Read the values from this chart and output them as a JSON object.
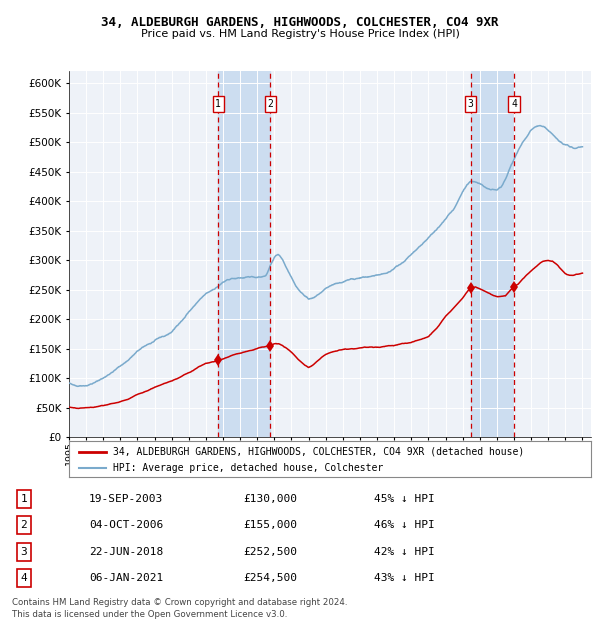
{
  "title1": "34, ALDEBURGH GARDENS, HIGHWOODS, COLCHESTER, CO4 9XR",
  "title2": "Price paid vs. HM Land Registry's House Price Index (HPI)",
  "legend_label_red": "34, ALDEBURGH GARDENS, HIGHWOODS, COLCHESTER, CO4 9XR (detached house)",
  "legend_label_blue": "HPI: Average price, detached house, Colchester",
  "footer1": "Contains HM Land Registry data © Crown copyright and database right 2024.",
  "footer2": "This data is licensed under the Open Government Licence v3.0.",
  "transactions": [
    {
      "num": 1,
      "date": "19-SEP-2003",
      "price": 130000,
      "pct": "45%",
      "dir": "↓"
    },
    {
      "num": 2,
      "date": "04-OCT-2006",
      "price": 155000,
      "pct": "46%",
      "dir": "↓"
    },
    {
      "num": 3,
      "date": "22-JUN-2018",
      "price": 252500,
      "pct": "42%",
      "dir": "↓"
    },
    {
      "num": 4,
      "date": "06-JAN-2021",
      "price": 254500,
      "pct": "43%",
      "dir": "↓"
    }
  ],
  "transaction_years": [
    2003.72,
    2006.76,
    2018.47,
    2021.01
  ],
  "ylim": [
    0,
    620000
  ],
  "xlim_start": 1995.0,
  "xlim_end": 2025.5,
  "plot_bg": "#eef2f8",
  "grid_color": "#ffffff",
  "red_color": "#cc0000",
  "blue_color": "#7aaacc",
  "shade_color": "#ccddf0",
  "hpi_years": [
    1995.0,
    1995.5,
    1996.0,
    1996.5,
    1997.0,
    1997.5,
    1998.0,
    1998.5,
    1999.0,
    1999.5,
    2000.0,
    2000.5,
    2001.0,
    2001.5,
    2002.0,
    2002.5,
    2003.0,
    2003.5,
    2004.0,
    2004.5,
    2005.0,
    2005.5,
    2006.0,
    2006.5,
    2007.0,
    2007.25,
    2007.5,
    2007.75,
    2008.0,
    2008.25,
    2008.5,
    2008.75,
    2009.0,
    2009.25,
    2009.5,
    2009.75,
    2010.0,
    2010.5,
    2011.0,
    2011.5,
    2012.0,
    2012.5,
    2013.0,
    2013.5,
    2014.0,
    2014.5,
    2015.0,
    2015.5,
    2016.0,
    2016.5,
    2017.0,
    2017.5,
    2018.0,
    2018.25,
    2018.5,
    2018.75,
    2019.0,
    2019.25,
    2019.5,
    2019.75,
    2020.0,
    2020.25,
    2020.5,
    2020.75,
    2021.0,
    2021.25,
    2021.5,
    2021.75,
    2022.0,
    2022.25,
    2022.5,
    2022.75,
    2023.0,
    2023.25,
    2023.5,
    2023.75,
    2024.0,
    2024.25,
    2024.5,
    2024.75,
    2025.0
  ],
  "hpi_vals": [
    90000,
    88000,
    88000,
    92000,
    100000,
    110000,
    120000,
    132000,
    145000,
    155000,
    163000,
    170000,
    178000,
    195000,
    212000,
    228000,
    242000,
    252000,
    262000,
    268000,
    270000,
    270000,
    272000,
    274000,
    305000,
    310000,
    300000,
    285000,
    272000,
    258000,
    248000,
    240000,
    234000,
    236000,
    240000,
    245000,
    252000,
    258000,
    264000,
    268000,
    270000,
    272000,
    275000,
    278000,
    285000,
    295000,
    310000,
    322000,
    338000,
    352000,
    368000,
    385000,
    415000,
    428000,
    435000,
    432000,
    428000,
    425000,
    422000,
    420000,
    418000,
    422000,
    435000,
    455000,
    470000,
    485000,
    500000,
    510000,
    520000,
    525000,
    528000,
    525000,
    518000,
    512000,
    505000,
    500000,
    495000,
    492000,
    490000,
    492000,
    490000
  ],
  "red_years": [
    1995.0,
    1995.5,
    1996.0,
    1996.5,
    1997.0,
    1997.5,
    1998.0,
    1998.5,
    1999.0,
    1999.5,
    2000.0,
    2000.5,
    2001.0,
    2001.5,
    2002.0,
    2002.5,
    2003.0,
    2003.5,
    2003.72,
    2004.0,
    2004.5,
    2005.0,
    2005.5,
    2006.0,
    2006.5,
    2006.76,
    2007.0,
    2007.25,
    2007.5,
    2007.75,
    2008.0,
    2008.25,
    2008.5,
    2008.75,
    2009.0,
    2009.25,
    2009.5,
    2009.75,
    2010.0,
    2010.5,
    2011.0,
    2011.5,
    2012.0,
    2012.5,
    2013.0,
    2013.5,
    2014.0,
    2014.5,
    2015.0,
    2015.5,
    2016.0,
    2016.5,
    2017.0,
    2017.5,
    2018.0,
    2018.25,
    2018.47,
    2018.75,
    2019.0,
    2019.25,
    2019.5,
    2019.75,
    2020.0,
    2020.5,
    2021.01,
    2021.25,
    2021.5,
    2021.75,
    2022.0,
    2022.25,
    2022.5,
    2022.75,
    2023.0,
    2023.25,
    2023.5,
    2023.75,
    2024.0,
    2024.25,
    2024.5,
    2025.0
  ],
  "red_vals": [
    50000,
    49000,
    49500,
    51000,
    53000,
    56000,
    60000,
    65000,
    72000,
    78000,
    84000,
    90000,
    95000,
    102000,
    110000,
    118000,
    125000,
    128000,
    130000,
    133000,
    138000,
    142000,
    146000,
    150000,
    153000,
    155000,
    158000,
    158000,
    155000,
    150000,
    144000,
    136000,
    128000,
    122000,
    118000,
    122000,
    128000,
    135000,
    140000,
    145000,
    148000,
    150000,
    151000,
    152000,
    153000,
    154000,
    156000,
    158000,
    161000,
    165000,
    170000,
    185000,
    205000,
    220000,
    235000,
    245000,
    252500,
    255000,
    252000,
    248000,
    244000,
    240000,
    238000,
    240000,
    254500,
    260000,
    268000,
    275000,
    282000,
    288000,
    294000,
    298000,
    300000,
    298000,
    292000,
    285000,
    278000,
    275000,
    274000,
    277000
  ]
}
